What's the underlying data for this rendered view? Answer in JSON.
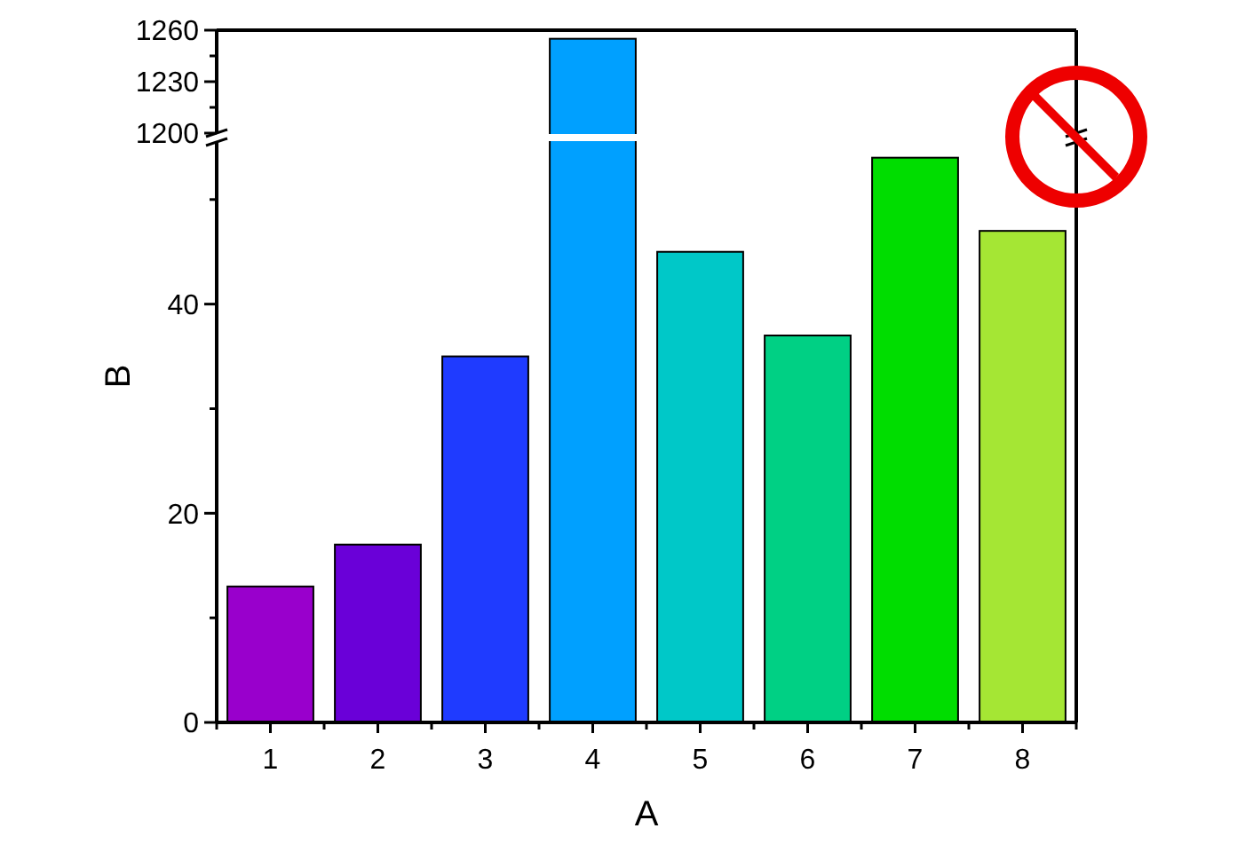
{
  "chart_data": [
    {
      "type": "bar",
      "categories": [
        "1",
        "2",
        "3",
        "4",
        "5",
        "6",
        "7",
        "8"
      ],
      "values": [
        null,
        null,
        null,
        1255,
        null,
        null,
        null,
        null
      ],
      "color": "#00a0ff",
      "ylim": [
        1200,
        1260
      ],
      "yticks": [
        1200,
        {
          "value": 1215,
          "label": null
        },
        1230,
        {
          "value": 1245,
          "label": null
        },
        1260
      ],
      "tick_labels": "y"
    },
    {
      "type": "bar",
      "xlabel": "A",
      "ylabel": "B",
      "categories": [
        "1",
        "2",
        "3",
        "4",
        "5",
        "6",
        "7",
        "8"
      ],
      "values": [
        13,
        17,
        35,
        null,
        45,
        37,
        54,
        47
      ],
      "colors": [
        "#9900cc",
        "#6a00d8",
        "#1f3bff",
        null,
        "#00c8c8",
        "#00d084",
        "#00dd00",
        "#a5e634"
      ],
      "ylim": [
        0,
        55.5
      ],
      "yticks": [
        0,
        {
          "value": 10,
          "label": null
        },
        20,
        {
          "value": 30,
          "label": null
        },
        40,
        {
          "value": 50,
          "label": null
        }
      ]
    }
  ]
}
